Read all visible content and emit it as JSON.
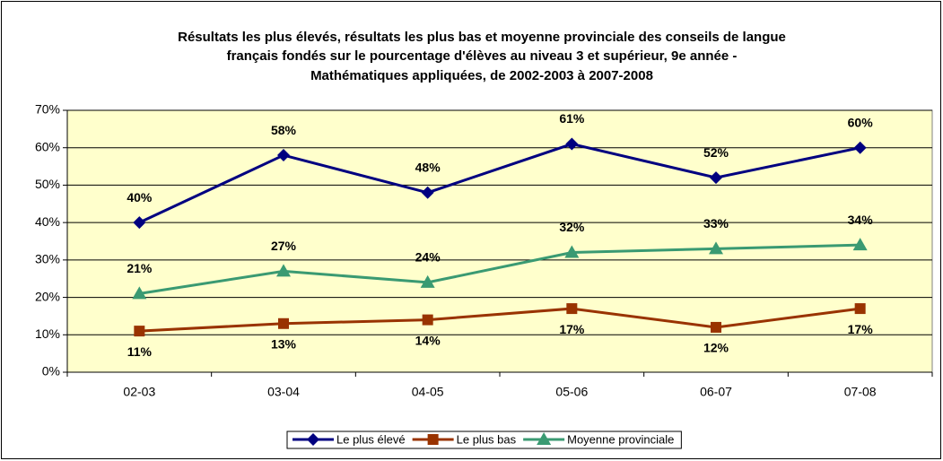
{
  "chart_data": {
    "type": "line",
    "title": [
      "Résultats les plus élevés, résultats les plus bas et moyenne provinciale des conseils de langue",
      "français fondés sur le pourcentage d'élèves au niveau 3 et supérieur, 9e année -",
      "Mathématiques appliquées, de 2002-2003 à 2007-2008"
    ],
    "categories": [
      "02-03",
      "03-04",
      "04-05",
      "05-06",
      "06-07",
      "07-08"
    ],
    "series": [
      {
        "name": "Le plus élevé",
        "color": "#000080",
        "marker": "diamond",
        "label_position": "above",
        "values": [
          40,
          58,
          48,
          61,
          52,
          60
        ],
        "value_labels": [
          "40%",
          "58%",
          "48%",
          "61%",
          "52%",
          "60%"
        ]
      },
      {
        "name": "Le plus bas",
        "color": "#993300",
        "marker": "square",
        "label_position": "below",
        "values": [
          11,
          13,
          14,
          17,
          12,
          17
        ],
        "value_labels": [
          "11%",
          "13%",
          "14%",
          "17%",
          "12%",
          "17%"
        ]
      },
      {
        "name": "Moyenne provinciale",
        "color": "#3a9a72",
        "marker": "triangle",
        "label_position": "above",
        "values": [
          21,
          27,
          24,
          32,
          33,
          34
        ],
        "value_labels": [
          "21%",
          "27%",
          "24%",
          "32%",
          "33%",
          "34%"
        ]
      }
    ],
    "ylim": [
      0,
      70
    ],
    "yticks": [
      {
        "value": 0,
        "label": "0%"
      },
      {
        "value": 10,
        "label": "10%"
      },
      {
        "value": 20,
        "label": "20%"
      },
      {
        "value": 30,
        "label": "30%"
      },
      {
        "value": 40,
        "label": "40%"
      },
      {
        "value": 50,
        "label": "50%"
      },
      {
        "value": 60,
        "label": "60%"
      },
      {
        "value": 70,
        "label": "70%"
      }
    ],
    "grid": true,
    "legend": "bottom"
  }
}
